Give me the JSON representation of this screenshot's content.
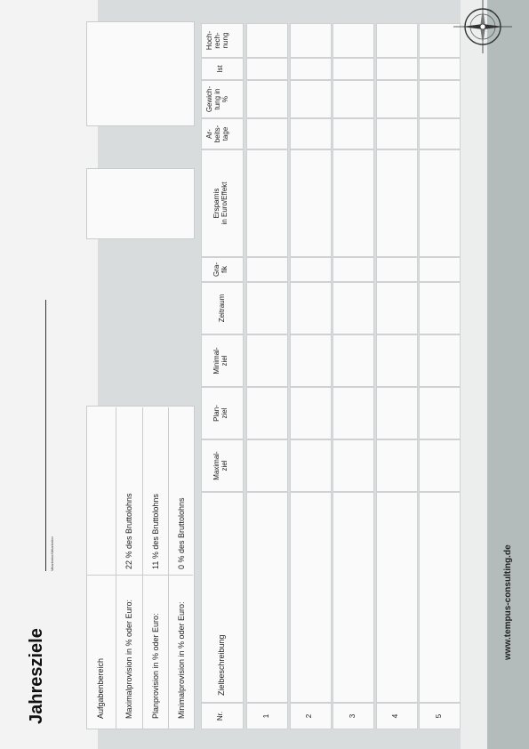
{
  "title": "Jahresziele",
  "subtitle_line": "Mitarbeiter/Mitarbeiter",
  "info_rows": [
    {
      "label": "Aufgabenbereich",
      "value": ""
    },
    {
      "label": "Maximalprovision in % oder Euro:",
      "value": "22 % des Bruttolohns"
    },
    {
      "label": "Planprovision in % oder Euro:",
      "value": "11 % des Bruttolohns"
    },
    {
      "label": "Minimalprovision in % oder Euro:",
      "value": "0 % des Bruttolohns"
    }
  ],
  "table": {
    "headers": {
      "nr": "Nr.",
      "zielbeschreibung": "Zielbeschreibung",
      "maximalziel": "Maximal-\nziel",
      "planziel": "Plan-\nziel",
      "minimalziel": "Minimal-\nziel",
      "zeitraum": "Zeitraum",
      "grafik": "Gra-\nfik",
      "ersparnis": "Ersparnis\nin Euro/Effekt",
      "arbeitstage": "Ar-\nbeits-\ntage",
      "gewichtung": "Gewich-\ntung in\n%",
      "ist": "Ist",
      "hochrechnung": "Hoch-\nrech-\nnung"
    },
    "rows": [
      "1",
      "2",
      "3",
      "4",
      "5"
    ]
  },
  "footer_url": "www.tempus-consulting.de",
  "colors": {
    "accent_strip": "#b3bcbb",
    "panel": "#d9dcdc"
  }
}
